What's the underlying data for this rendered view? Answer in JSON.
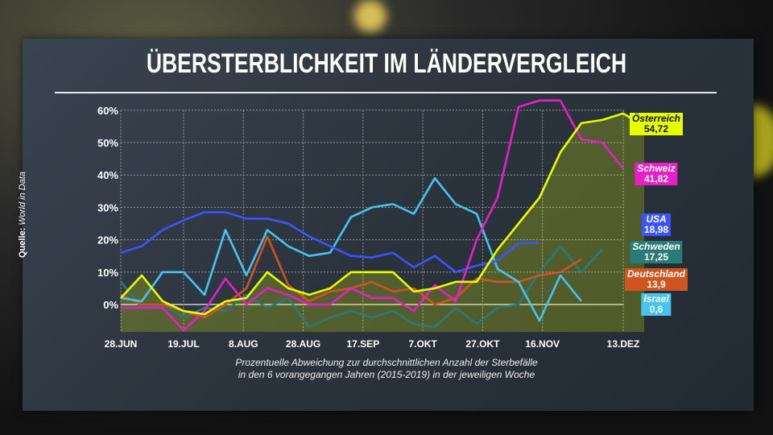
{
  "title": "ÜBERSTERBLICHKEIT IM LÄNDERVERGLEICH",
  "source_label": "Quelle:",
  "source_value": "World in Data",
  "subtitle_line1": "Prozentuelle Abweichung zur durchschnittlichen Anzahl der Sterbefälle",
  "subtitle_line2": "in den 6 vorangegangen Jahren (2015-2019) in der jeweiligen Woche",
  "chart_data": {
    "type": "line",
    "title": "ÜBERSTERBLICHKEIT IM LÄNDERVERGLEICH",
    "ylabel": "",
    "ylim": [
      -8,
      63
    ],
    "yticks": [
      0,
      10,
      20,
      30,
      40,
      50,
      60
    ],
    "ytick_labels": [
      "0%",
      "10%",
      "20%",
      "30%",
      "40%",
      "50%",
      "60%"
    ],
    "xticks": [
      {
        "date": "2020-06-28",
        "label": "28.JUN"
      },
      {
        "date": "2020-07-19",
        "label": "19.JUL"
      },
      {
        "date": "2020-08-08",
        "label": "8.AUG"
      },
      {
        "date": "2020-08-28",
        "label": "28.AUG"
      },
      {
        "date": "2020-09-17",
        "label": "17.SEP"
      },
      {
        "date": "2020-10-07",
        "label": "7.OKT"
      },
      {
        "date": "2020-10-27",
        "label": "27.OKT"
      },
      {
        "date": "2020-11-16",
        "label": "16.NOV"
      },
      {
        "date": "2020-12-13",
        "label": "13.DEZ"
      }
    ],
    "x_start": "2020-06-28",
    "x_step_days": 7,
    "grid": true,
    "legend": "right, end-of-line labels",
    "series": [
      {
        "name": "Österreich",
        "last_value": "54,72",
        "color": "#e6ff00",
        "text_color": "#111",
        "area": true,
        "values": [
          2,
          9,
          1,
          -2,
          -3,
          1,
          2,
          10,
          5,
          3,
          5,
          10,
          10,
          10,
          4,
          5,
          7,
          7,
          17,
          25,
          33,
          47,
          56,
          57,
          59,
          55
        ]
      },
      {
        "name": "Schweiz",
        "last_value": "41,82",
        "color": "#e61fc8",
        "text_color": "#fff",
        "values": [
          -1,
          -1,
          -1,
          -8,
          -2,
          8,
          0,
          5,
          3,
          0,
          0,
          5,
          2,
          2,
          -2,
          6,
          1,
          20,
          33,
          61,
          63,
          63,
          51,
          50,
          42
        ]
      },
      {
        "name": "USA",
        "last_value": "18,98",
        "color": "#3a55ff",
        "text_color": "#fff",
        "values": [
          16,
          18,
          23,
          26,
          28.5,
          28.5,
          26.5,
          26.5,
          25,
          21,
          18,
          15,
          14.5,
          16,
          11.5,
          15,
          10,
          12,
          13.5,
          19,
          19
        ]
      },
      {
        "name": "Schweden",
        "last_value": "17,25",
        "color": "#2a7a78",
        "text_color": "#fff",
        "values": [
          7,
          -1,
          0,
          -4,
          -1,
          -2,
          3,
          -1,
          2,
          -7,
          -4,
          -2,
          -4,
          -2,
          -6,
          -7,
          -1,
          -6,
          -1,
          0,
          10,
          18,
          10,
          17
        ]
      },
      {
        "name": "Deutschland",
        "last_value": "13,9",
        "color": "#d0541e",
        "text_color": "#fff",
        "values": [
          3,
          0,
          0,
          -2,
          -4,
          0,
          5,
          21,
          6,
          1,
          4,
          5,
          7,
          4,
          5,
          0,
          2,
          8,
          7,
          7,
          9,
          10,
          14
        ]
      },
      {
        "name": "Israel",
        "last_value": "0,6",
        "color": "#45c4f0",
        "text_color": "#fff",
        "values": [
          2,
          1,
          10,
          10,
          3,
          23,
          9,
          23,
          18,
          15,
          16,
          27,
          30,
          31,
          28,
          39,
          31,
          28,
          11,
          7,
          -5,
          9,
          1
        ]
      }
    ]
  }
}
